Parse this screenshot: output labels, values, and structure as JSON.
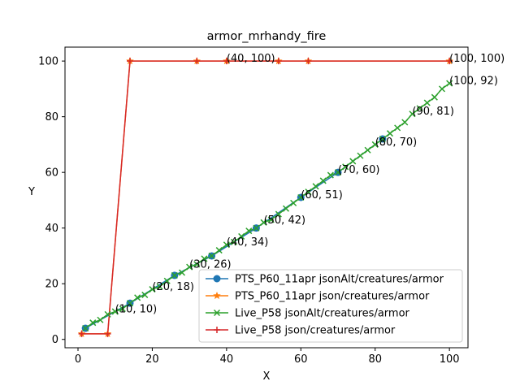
{
  "chart_data": {
    "type": "line",
    "title": "armor_mrhandy_fire",
    "xlabel": "X",
    "ylabel": "Y",
    "xlim": [
      -3.5,
      105
    ],
    "ylim": [
      -3,
      105
    ],
    "xticks": [
      0,
      20,
      40,
      60,
      80,
      100
    ],
    "yticks": [
      0,
      20,
      40,
      60,
      80,
      100
    ],
    "grid": false,
    "legend_position": "lower-right",
    "series": [
      {
        "name": "PTS_P60_11apr jsonAlt/creatures/armor",
        "color": "#1f77b4",
        "marker": "circle",
        "x": [
          2,
          14,
          26,
          36,
          48,
          60,
          70,
          82
        ],
        "y": [
          4,
          13,
          23,
          30,
          40,
          51,
          60,
          72
        ]
      },
      {
        "name": "PTS_P60_11apr json/creatures/armor",
        "color": "#ff7f0e",
        "marker": "star",
        "x": [
          1,
          8,
          14,
          32,
          40,
          54,
          62,
          100
        ],
        "y": [
          2,
          2,
          100,
          100,
          100,
          100,
          100,
          100
        ]
      },
      {
        "name": "Live_P58 jsonAlt/creatures/armor",
        "color": "#2ca02c",
        "marker": "x",
        "x": [
          2,
          4,
          6,
          8,
          10,
          12,
          14,
          16,
          18,
          20,
          22,
          24,
          26,
          28,
          30,
          32,
          34,
          36,
          38,
          40,
          42,
          44,
          46,
          48,
          50,
          52,
          54,
          56,
          58,
          60,
          62,
          64,
          66,
          68,
          70,
          72,
          74,
          76,
          78,
          80,
          82,
          84,
          86,
          88,
          90,
          92,
          94,
          96,
          98,
          100
        ],
        "y": [
          4,
          6,
          7,
          9,
          10,
          11,
          13,
          15,
          16,
          18,
          19,
          21,
          23,
          24,
          26,
          27,
          29,
          30,
          32,
          34,
          35,
          37,
          39,
          40,
          42,
          43,
          45,
          47,
          49,
          51,
          53,
          55,
          57,
          59,
          60,
          62,
          64,
          66,
          68,
          70,
          72,
          74,
          76,
          78,
          81,
          83,
          85,
          87,
          90,
          92
        ]
      },
      {
        "name": "Live_P58 json/creatures/armor",
        "color": "#d62728",
        "marker": "plus",
        "x": [
          1,
          8,
          14,
          32,
          40,
          54,
          62,
          100
        ],
        "y": [
          2,
          2,
          100,
          100,
          100,
          100,
          100,
          100
        ]
      }
    ],
    "annotations": [
      {
        "text": "(10, 10)",
        "x": 10,
        "y": 10
      },
      {
        "text": "(20, 18)",
        "x": 20,
        "y": 18
      },
      {
        "text": "(30, 26)",
        "x": 30,
        "y": 26
      },
      {
        "text": "(40, 34)",
        "x": 40,
        "y": 34
      },
      {
        "text": "(50, 42)",
        "x": 50,
        "y": 42
      },
      {
        "text": "(60, 51)",
        "x": 60,
        "y": 51
      },
      {
        "text": "(70, 60)",
        "x": 70,
        "y": 60
      },
      {
        "text": "(80, 70)",
        "x": 80,
        "y": 70
      },
      {
        "text": "(90, 81)",
        "x": 90,
        "y": 81
      },
      {
        "text": "(100, 92)",
        "x": 100,
        "y": 92
      },
      {
        "text": "(40, 100)",
        "x": 40,
        "y": 100
      },
      {
        "text": "(100, 100)",
        "x": 100,
        "y": 100
      }
    ]
  }
}
